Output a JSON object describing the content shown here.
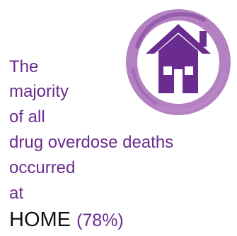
{
  "statement": {
    "line_1": "The",
    "line_2": "majority",
    "line_3": "of all",
    "line_4": "drug overdose deaths",
    "line_5": "occurred",
    "line_6": "at",
    "home_word": "HOME",
    "home_percent": "(78%)"
  },
  "emblem": {
    "icon": "house-icon",
    "ring": "brush-stroke-circle"
  },
  "colors": {
    "accent_purple": "#6a2c8f",
    "ring_purple": "#a66bb6",
    "text_dark": "#111111",
    "background": "#ffffff"
  }
}
